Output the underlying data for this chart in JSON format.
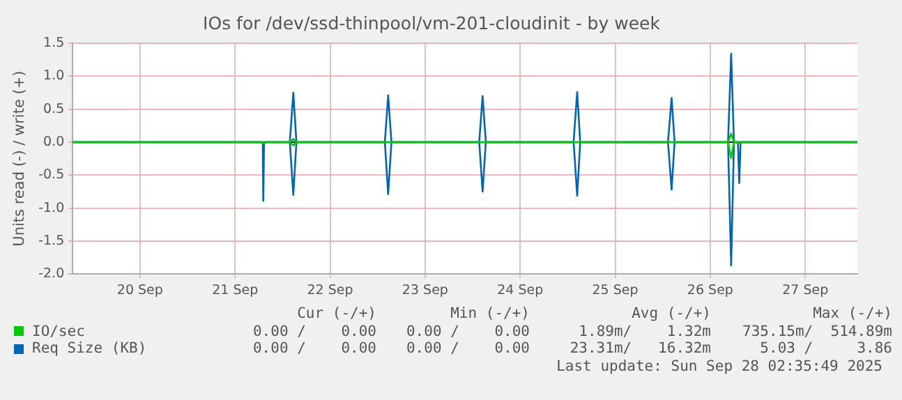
{
  "chart_data": {
    "type": "line",
    "title": "IOs for /dev/ssd-thinpool/vm-201-cloudinit - by week",
    "ylabel": "Units read (-) / write (+)",
    "xlim": [
      "2025-09-19T19:00",
      "2025-09-28T01:10"
    ],
    "xticks": [
      {
        "value": "2025-09-20T12:00",
        "label": "20 Sep"
      },
      {
        "value": "2025-09-21T12:00",
        "label": "21 Sep"
      },
      {
        "value": "2025-09-22T12:00",
        "label": "22 Sep"
      },
      {
        "value": "2025-09-23T12:00",
        "label": "23 Sep"
      },
      {
        "value": "2025-09-24T12:00",
        "label": "24 Sep"
      },
      {
        "value": "2025-09-25T12:00",
        "label": "25 Sep"
      },
      {
        "value": "2025-09-26T12:00",
        "label": "26 Sep"
      },
      {
        "value": "2025-09-27T12:00",
        "label": "27 Sep"
      }
    ],
    "ylim": [
      -2,
      1.5
    ],
    "yticks": [
      {
        "value": -2,
        "label": "-2.0"
      },
      {
        "value": -1.5,
        "label": "-1.5"
      },
      {
        "value": -1,
        "label": "-1.0"
      },
      {
        "value": -0.5,
        "label": "-0.5"
      },
      {
        "value": 0,
        "label": "0.0"
      },
      {
        "value": 0.5,
        "label": "0.5"
      },
      {
        "value": 1,
        "label": "1.0"
      },
      {
        "value": 1.5,
        "label": "1.5"
      }
    ],
    "grid": true,
    "legend": "bottom left",
    "marker": "none",
    "line_style": "solid",
    "series": [
      {
        "name": "IO/sec",
        "color": "#00cc00",
        "x": [
          "2025-09-19T19:00",
          "2025-09-22T01:50",
          "2025-09-22T02:43",
          "2025-09-22T03:30",
          "2025-09-26T16:30",
          "2025-09-26T17:17",
          "2025-09-26T18:00",
          "2025-09-28T01:10"
        ],
        "values": [
          0,
          0,
          0.05,
          0,
          0,
          0.13,
          0,
          0
        ]
      },
      {
        "color": "#00cc00",
        "x": [
          "2025-09-19T19:00",
          "2025-09-21T18:30",
          "2025-09-21T19:08",
          "2025-09-21T19:40",
          "2025-09-22T01:50",
          "2025-09-22T02:43",
          "2025-09-22T03:30",
          "2025-09-26T16:30",
          "2025-09-26T17:17",
          "2025-09-26T18:00",
          "2025-09-28T01:10"
        ],
        "values": [
          0,
          0,
          -0.02,
          0,
          0,
          -0.05,
          0,
          0,
          -0.24,
          0,
          0
        ]
      },
      {
        "name": "Req Size (KB)",
        "color": "#0066b3",
        "x": [
          "2025-09-19T19:00",
          "2025-09-22T01:50",
          "2025-09-22T02:43",
          "2025-09-22T03:30",
          "2025-09-23T01:50",
          "2025-09-23T02:40",
          "2025-09-23T03:30",
          "2025-09-24T01:40",
          "2025-09-24T02:31",
          "2025-09-24T03:20",
          "2025-09-25T01:30",
          "2025-09-25T02:24",
          "2025-09-25T03:10",
          "2025-09-26T01:20",
          "2025-09-26T02:15",
          "2025-09-26T03:00",
          "2025-09-26T16:30",
          "2025-09-26T17:17",
          "2025-09-26T18:00",
          "2025-09-28T01:10"
        ],
        "values": [
          0,
          0,
          0.75,
          0,
          0,
          0.71,
          0,
          0,
          0.7,
          0,
          0,
          0.76,
          0,
          0,
          0.67,
          0,
          0,
          1.34,
          0,
          0
        ]
      },
      {
        "color": "#0066b3",
        "x": [
          "2025-09-19T19:00",
          "2025-09-21T19:00",
          "2025-09-21T19:08",
          "2025-09-21T19:20",
          "2025-09-22T01:50",
          "2025-09-22T02:43",
          "2025-09-22T03:30",
          "2025-09-23T01:50",
          "2025-09-23T02:40",
          "2025-09-23T03:30",
          "2025-09-24T01:40",
          "2025-09-24T02:31",
          "2025-09-24T03:20",
          "2025-09-25T01:30",
          "2025-09-25T02:24",
          "2025-09-25T03:10",
          "2025-09-26T01:20",
          "2025-09-26T02:15",
          "2025-09-26T03:00",
          "2025-09-26T16:30",
          "2025-09-26T17:17",
          "2025-09-26T18:00",
          "2025-09-26T19:00",
          "2025-09-26T19:20",
          "2025-09-26T19:40",
          "2025-09-28T01:10"
        ],
        "values": [
          0,
          0,
          -0.89,
          0,
          0,
          -0.8,
          0,
          0,
          -0.79,
          0,
          0,
          -0.75,
          0,
          0,
          -0.81,
          0,
          0,
          -0.72,
          0,
          0,
          -1.87,
          0,
          0,
          -0.62,
          0,
          0
        ]
      }
    ],
    "ref_lines": [
      {
        "axis": "y",
        "value": 0,
        "color": "#000000"
      }
    ],
    "annotations": [
      "Cur (-/+)",
      "Min (-/+)",
      "Avg (-/+)",
      "Max (-/+)",
      "0.00 /    0.00",
      "0.00 /    0.00",
      "1.89m/    1.32m",
      "735.15m/  514.89m",
      "0.00 /    0.00",
      "0.00 /    0.00",
      "23.31m/   16.32m",
      "5.03 /     3.86",
      "Last update: Sun Sep 28 02:35:49 2025"
    ]
  }
}
